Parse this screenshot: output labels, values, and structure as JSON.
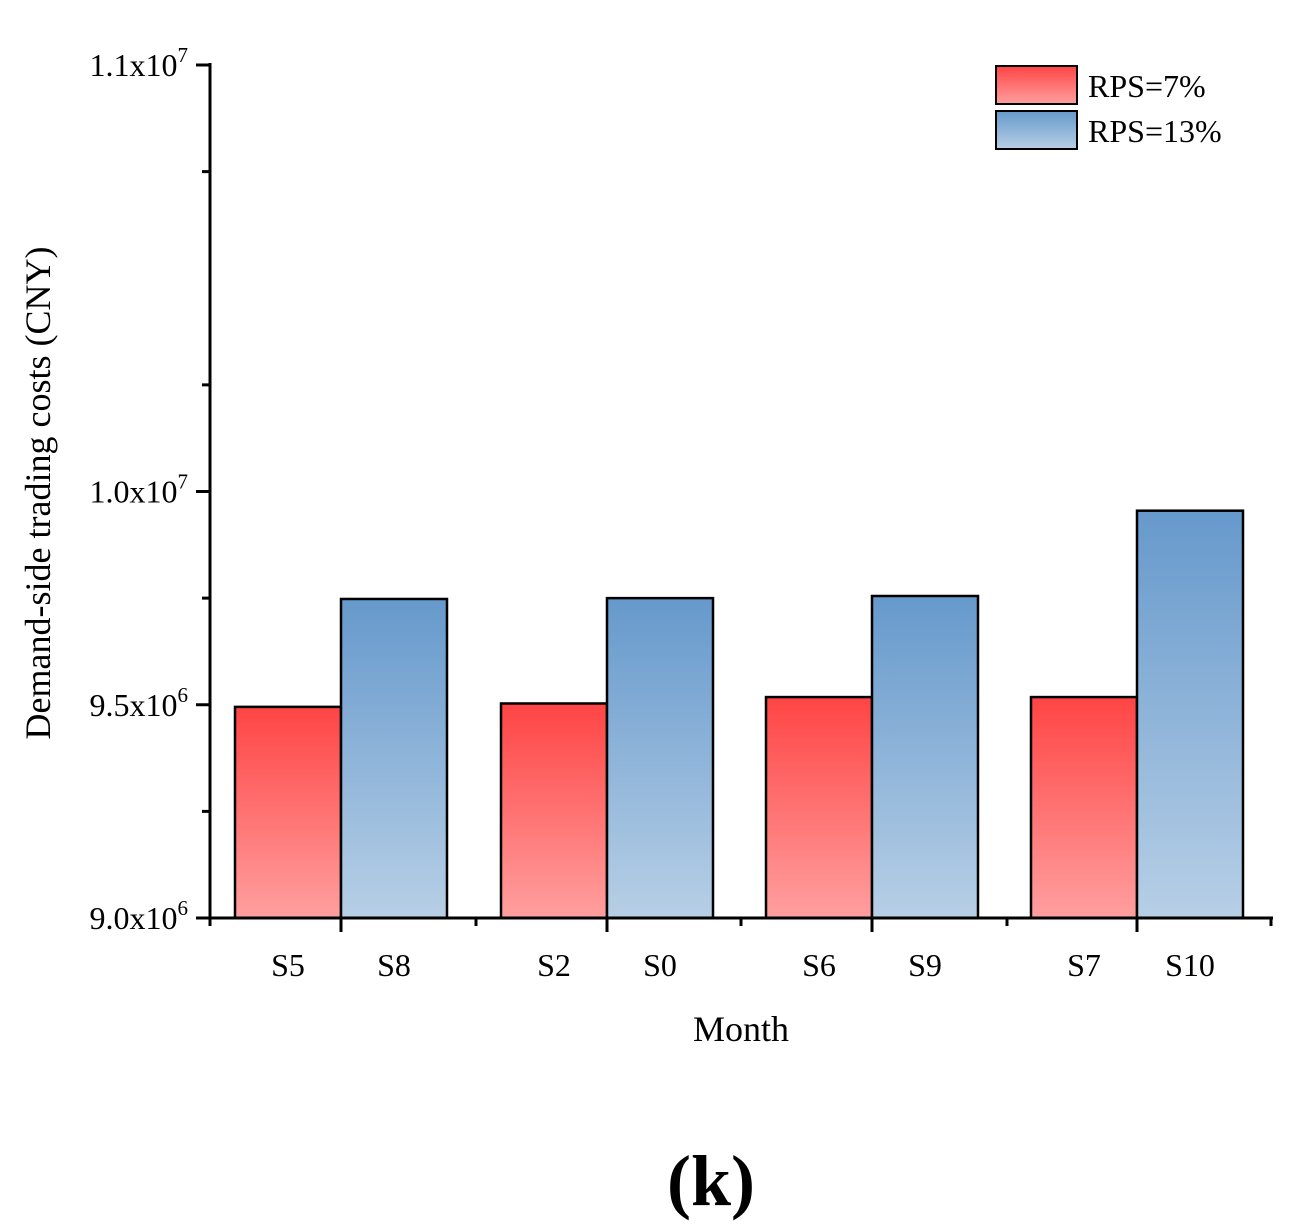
{
  "chart_data": {
    "type": "bar",
    "ylabel": "Demand-side trading costs (CNY)",
    "xlabel": "Month",
    "panel_label": "(k)",
    "ylim": [
      9000000,
      11000000
    ],
    "y_ticks": [
      {
        "value": 9000000,
        "mantissa": "9.0x10",
        "exp": "6"
      },
      {
        "value": 9500000,
        "mantissa": "9.5x10",
        "exp": "6"
      },
      {
        "value": 10000000,
        "mantissa": "1.0x10",
        "exp": "7"
      },
      {
        "value": 11000000,
        "mantissa": "1.1x10",
        "exp": "7"
      }
    ],
    "y_minor_ticks": [
      9250000,
      9750000,
      10250000,
      10750000
    ],
    "legend_position": "top-right",
    "series": [
      {
        "name": "RPS=7%",
        "gradient": [
          "#ff4444",
          "#ff9f9f"
        ],
        "categories": [
          "S5",
          "S2",
          "S6",
          "S7"
        ],
        "values": [
          9495000,
          9503000,
          9518000,
          9518000
        ]
      },
      {
        "name": "RPS=13%",
        "gradient": [
          "#6699cc",
          "#b7cfe6"
        ],
        "categories": [
          "S8",
          "S0",
          "S9",
          "S10"
        ],
        "values": [
          9748000,
          9750000,
          9755000,
          9955000
        ]
      }
    ]
  }
}
